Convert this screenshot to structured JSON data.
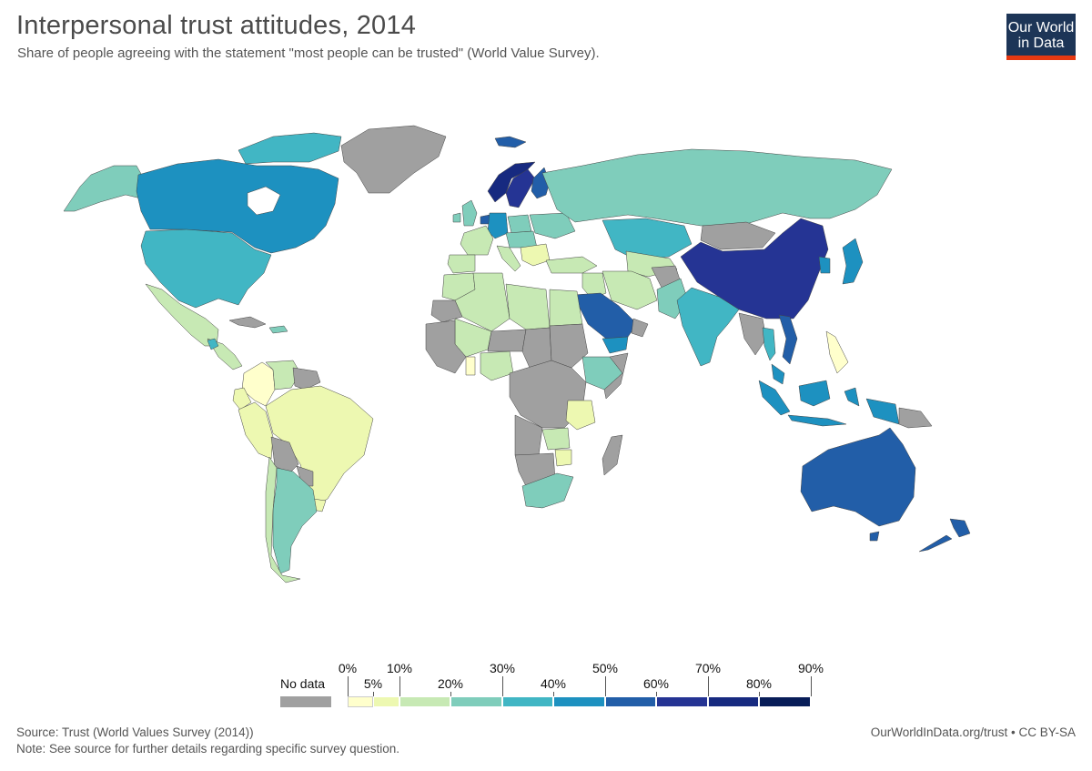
{
  "header": {
    "title": "Interpersonal trust attitudes, 2014",
    "subtitle": "Share of people agreeing with the statement \"most people can be trusted\" (World Value Survey)."
  },
  "logo": {
    "line1": "Our World",
    "line2": "in Data"
  },
  "legend": {
    "nodata_label": "No data",
    "nodata_color": "#a0a0a0",
    "bins": [
      {
        "from": 0,
        "to": 5,
        "color": "#ffffcc"
      },
      {
        "from": 5,
        "to": 10,
        "color": "#edf8b1"
      },
      {
        "from": 10,
        "to": 20,
        "color": "#c7e9b4"
      },
      {
        "from": 20,
        "to": 30,
        "color": "#7fcdbb"
      },
      {
        "from": 30,
        "to": 40,
        "color": "#41b6c4"
      },
      {
        "from": 40,
        "to": 50,
        "color": "#1d91c0"
      },
      {
        "from": 50,
        "to": 60,
        "color": "#225ea8"
      },
      {
        "from": 60,
        "to": 70,
        "color": "#253494"
      },
      {
        "from": 70,
        "to": 80,
        "color": "#172a80"
      },
      {
        "from": 80,
        "to": 90,
        "color": "#081d58"
      }
    ],
    "labels_upper": [
      "0%",
      "10%",
      "30%",
      "50%",
      "70%",
      "90%"
    ],
    "labels_lower": [
      "5%",
      "20%",
      "40%",
      "60%",
      "80%"
    ]
  },
  "footer": {
    "source": "Source: Trust (World Values Survey (2014))",
    "note": "Note: See source for further details regarding specific survey question.",
    "credit": "OurWorldInData.org/trust • CC BY-SA"
  },
  "colors": {
    "c0": "#ffffcc",
    "c5": "#edf8b1",
    "c10": "#c7e9b4",
    "c20": "#7fcdbb",
    "c30": "#41b6c4",
    "c40": "#1d91c0",
    "c50": "#225ea8",
    "c60": "#253494",
    "c70": "#172a80",
    "c80": "#081d58",
    "nodata": "#a0a0a0"
  }
}
